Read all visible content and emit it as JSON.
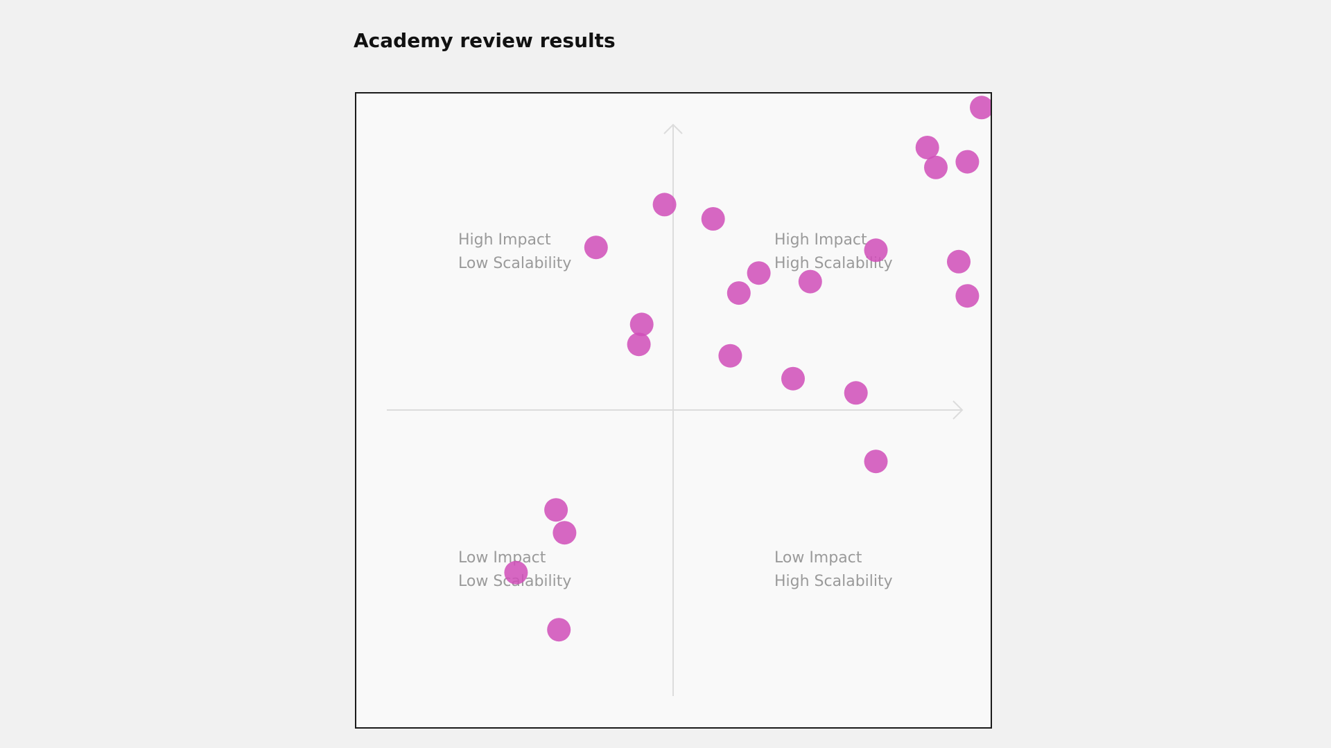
{
  "header": {
    "title": "Academy review results"
  },
  "colors": {
    "point": "#d04eb8",
    "axis": "#dcdcdc",
    "quadrant_label": "#9a9a9a",
    "frame_border": "#1a1a1a",
    "chart_background": "#f9f9f9",
    "page_background": "#f1f1f1"
  },
  "chart_data": {
    "type": "scatter",
    "title": "Academy review results",
    "xlabel": "",
    "ylabel": "",
    "xlim": [
      -1,
      1
    ],
    "ylim": [
      -1,
      1
    ],
    "grid": false,
    "quadrant_labels": {
      "top_left": [
        "High Impact",
        "Low Scalability"
      ],
      "top_right": [
        "High Impact",
        "High Scalability"
      ],
      "bottom_left": [
        "Low Impact",
        "Low Scalability"
      ],
      "bottom_right": [
        "Low Impact",
        "High Scalability"
      ]
    },
    "series": [
      {
        "points": [
          {
            "x": 1.08,
            "y": 1.06
          },
          {
            "x": 0.89,
            "y": 0.92
          },
          {
            "x": 0.92,
            "y": 0.85
          },
          {
            "x": 1.03,
            "y": 0.87
          },
          {
            "x": -0.03,
            "y": 0.72
          },
          {
            "x": 0.14,
            "y": 0.67
          },
          {
            "x": -0.27,
            "y": 0.57
          },
          {
            "x": 0.71,
            "y": 0.56
          },
          {
            "x": 1.0,
            "y": 0.52
          },
          {
            "x": 0.3,
            "y": 0.48
          },
          {
            "x": 0.48,
            "y": 0.45
          },
          {
            "x": 0.23,
            "y": 0.41
          },
          {
            "x": 1.03,
            "y": 0.4
          },
          {
            "x": -0.11,
            "y": 0.3
          },
          {
            "x": -0.12,
            "y": 0.23
          },
          {
            "x": 0.2,
            "y": 0.19
          },
          {
            "x": 0.42,
            "y": 0.11
          },
          {
            "x": 0.64,
            "y": 0.06
          },
          {
            "x": 0.71,
            "y": -0.18
          },
          {
            "x": -0.41,
            "y": -0.35
          },
          {
            "x": -0.38,
            "y": -0.43
          },
          {
            "x": -0.55,
            "y": -0.57
          },
          {
            "x": -0.4,
            "y": -0.77
          }
        ]
      }
    ]
  }
}
